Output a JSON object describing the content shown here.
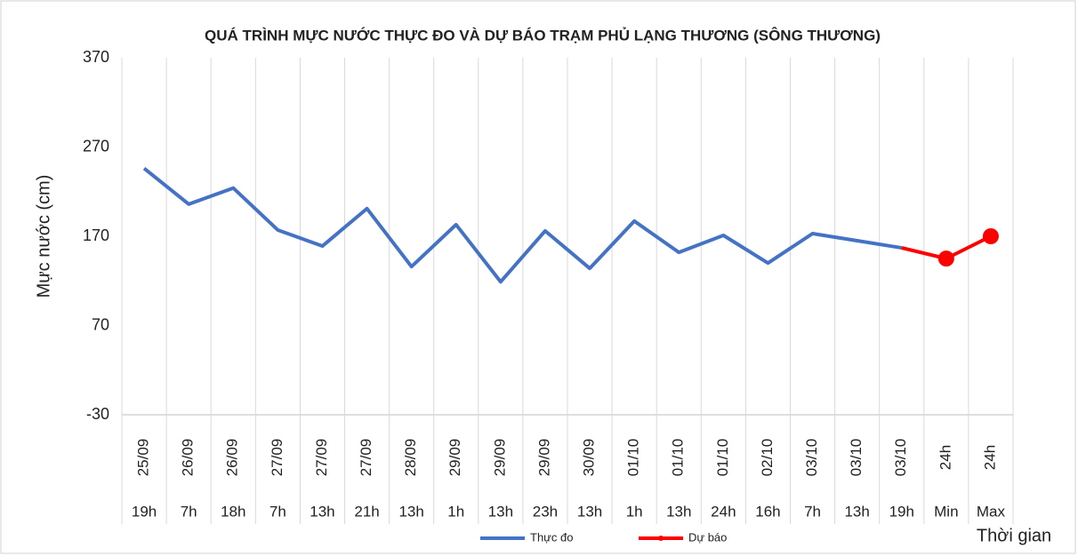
{
  "chart_data": {
    "type": "line",
    "title": "QUÁ TRÌNH MỰC NƯỚC THỰC ĐO VÀ DỰ BÁO TRẠM PHỦ LẠNG THƯƠNG (SÔNG THƯƠNG)",
    "y_label": "Mực nước (cm)",
    "x_label": "Thời gian",
    "categories": [
      "25/09",
      "26/09",
      "26/09",
      "27/09",
      "27/09",
      "27/09",
      "28/09",
      "29/09",
      "29/09",
      "29/09",
      "30/09",
      "01/10",
      "01/10",
      "01/10",
      "02/10",
      "03/10",
      "03/10",
      "03/10",
      "24h",
      "24h"
    ],
    "subcategories": [
      "19h",
      "7h",
      "18h",
      "7h",
      "13h",
      "21h",
      "13h",
      "1h",
      "13h",
      "23h",
      "13h",
      "1h",
      "13h",
      "24h",
      "16h",
      "7h",
      "13h",
      "19h",
      "Min",
      "Max"
    ],
    "series": [
      {
        "name": "Thực đo",
        "color": "#4472c4",
        "values": [
          246,
          206,
          224,
          177,
          159,
          201,
          136,
          183,
          119,
          176,
          134,
          187,
          152,
          171,
          140,
          173,
          165,
          157,
          null,
          null
        ]
      },
      {
        "name": "Dự báo",
        "color": "#ff0000",
        "values": [
          null,
          null,
          null,
          null,
          null,
          null,
          null,
          null,
          null,
          null,
          null,
          null,
          null,
          null,
          null,
          null,
          null,
          157,
          145,
          170
        ]
      }
    ],
    "ylim": [
      -30,
      370
    ],
    "yticks": [
      -30,
      70,
      170,
      270,
      370
    ],
    "grid": true,
    "legend": "bottom"
  }
}
